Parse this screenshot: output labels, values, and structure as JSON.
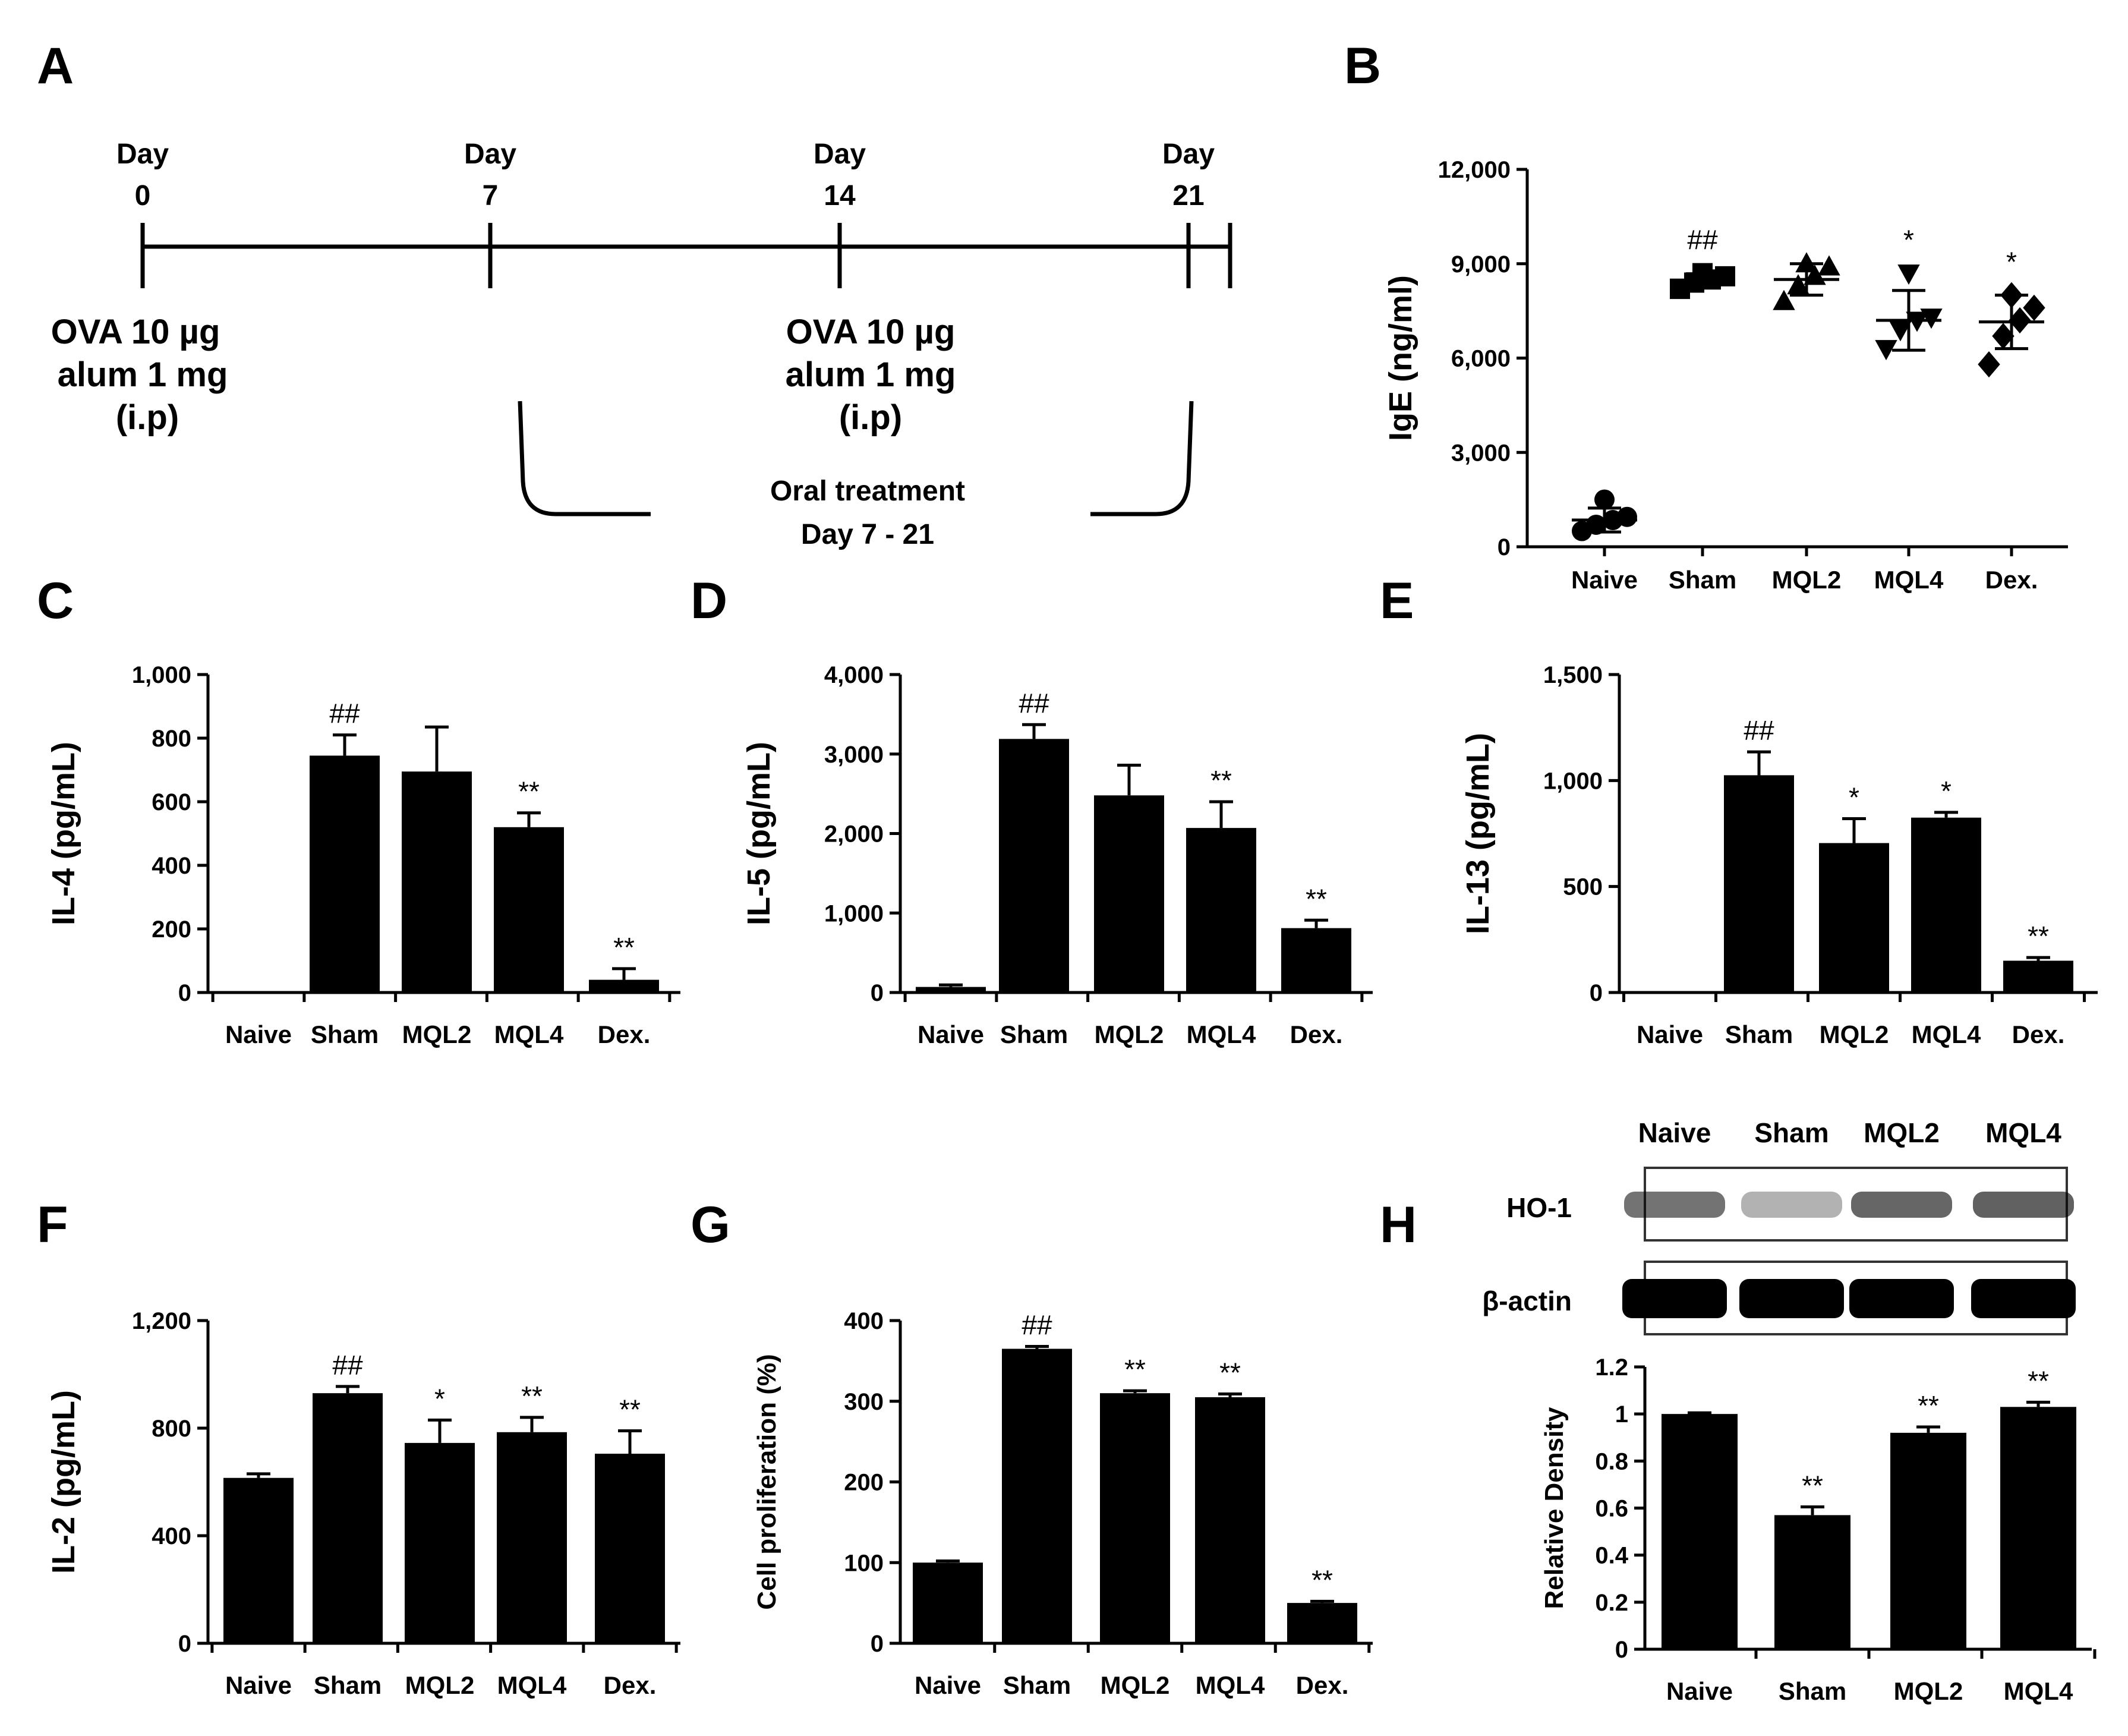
{
  "panel_labels": {
    "A": "A",
    "B": "B",
    "C": "C",
    "D": "D",
    "E": "E",
    "F": "F",
    "G": "G",
    "H": "H"
  },
  "timeline": {
    "days": [
      {
        "label": "Day",
        "num": "0"
      },
      {
        "label": "Day",
        "num": "7"
      },
      {
        "label": "Day",
        "num": "14"
      },
      {
        "label": "Day",
        "num": "21"
      }
    ],
    "injection1": [
      "OVA 10 µg",
      "alum 1 mg",
      "(i.p)"
    ],
    "injection2": [
      "OVA 10 µg",
      "alum 1 mg",
      "(i.p)"
    ],
    "treatment": [
      "Oral treatment",
      "Day 7 - 21"
    ]
  },
  "blot": {
    "lanes": [
      "Naive",
      "Sham",
      "MQL2",
      "MQL4"
    ],
    "rows": [
      "HO-1",
      "β-actin"
    ],
    "ho1_intensity": [
      0.55,
      0.3,
      0.6,
      0.62
    ],
    "actin_intensity": [
      1,
      1,
      1,
      1
    ]
  },
  "colors": {
    "bar": "#000000",
    "axis": "#000000",
    "background": "#ffffff"
  },
  "chart_data": [
    {
      "id": "B",
      "type": "scatter",
      "title": "",
      "xlabel": "",
      "ylabel": "IgE (ng/ml)",
      "categories": [
        "Naive",
        "Sham",
        "MQL2",
        "MQL4",
        "Dex."
      ],
      "ylim": [
        0,
        12000
      ],
      "yticks": [
        0,
        3000,
        6000,
        9000,
        12000
      ],
      "ytick_labels": [
        "0",
        "3,000",
        "6,000",
        "9,000",
        "12,000"
      ],
      "markers": [
        "circle",
        "square",
        "triangle-up",
        "triangle-down",
        "diamond"
      ],
      "points": [
        [
          500,
          700,
          850,
          950,
          1500
        ],
        [
          8200,
          8400,
          8500,
          8600,
          8700
        ],
        [
          7800,
          8300,
          8600,
          8900,
          9000
        ],
        [
          6300,
          6900,
          7200,
          7300,
          8700
        ],
        [
          5800,
          6700,
          7200,
          7600,
          8000
        ]
      ],
      "means": [
        850,
        8480,
        8500,
        7200,
        7150
      ],
      "sd": [
        380,
        200,
        500,
        950,
        850
      ],
      "annotations": [
        "",
        "##",
        "",
        "*",
        "*"
      ]
    },
    {
      "id": "C",
      "type": "bar",
      "title": "",
      "xlabel": "",
      "ylabel": "IL-4 (pg/mL)",
      "categories": [
        "Naive",
        "Sham",
        "MQL2",
        "MQL4",
        "Dex."
      ],
      "values": [
        0,
        745,
        695,
        520,
        40
      ],
      "errors": [
        0,
        65,
        140,
        45,
        35
      ],
      "ylim": [
        0,
        1000
      ],
      "yticks": [
        0,
        200,
        400,
        600,
        800,
        1000
      ],
      "ytick_labels": [
        "0",
        "200",
        "400",
        "600",
        "800",
        "1,000"
      ],
      "annotations": [
        "",
        "##",
        "",
        "**",
        "**"
      ]
    },
    {
      "id": "D",
      "type": "bar",
      "title": "",
      "xlabel": "",
      "ylabel": "IL-5 (pg/mL)",
      "categories": [
        "Naive",
        "Sham",
        "MQL2",
        "MQL4",
        "Dex."
      ],
      "values": [
        70,
        3190,
        2480,
        2070,
        810
      ],
      "errors": [
        25,
        180,
        380,
        330,
        100
      ],
      "ylim": [
        0,
        4000
      ],
      "yticks": [
        0,
        1000,
        2000,
        3000,
        4000
      ],
      "ytick_labels": [
        "0",
        "1,000",
        "2,000",
        "3,000",
        "4,000"
      ],
      "annotations": [
        "",
        "##",
        "",
        "**",
        "**"
      ]
    },
    {
      "id": "E",
      "type": "bar",
      "title": "",
      "xlabel": "",
      "ylabel": "IL-13 (pg/mL)",
      "categories": [
        "Naive",
        "Sham",
        "MQL2",
        "MQL4",
        "Dex."
      ],
      "values": [
        0,
        1025,
        705,
        825,
        150
      ],
      "errors": [
        0,
        110,
        115,
        25,
        15
      ],
      "ylim": [
        0,
        1500
      ],
      "yticks": [
        0,
        500,
        1000,
        1500
      ],
      "ytick_labels": [
        "0",
        "500",
        "1,000",
        "1,500"
      ],
      "annotations": [
        "",
        "##",
        "*",
        "*",
        "**"
      ]
    },
    {
      "id": "F",
      "type": "bar",
      "title": "",
      "xlabel": "",
      "ylabel": "IL-2 (pg/mL)",
      "categories": [
        "Naive",
        "Sham",
        "MQL2",
        "MQL4",
        "Dex."
      ],
      "values": [
        615,
        930,
        745,
        785,
        705
      ],
      "errors": [
        15,
        25,
        85,
        55,
        85
      ],
      "ylim": [
        0,
        1200
      ],
      "yticks": [
        0,
        400,
        800,
        1200
      ],
      "ytick_labels": [
        "0",
        "400",
        "800",
        "1,200"
      ],
      "annotations": [
        "",
        "##",
        "*",
        "**",
        "**"
      ]
    },
    {
      "id": "G",
      "type": "bar",
      "title": "",
      "xlabel": "",
      "ylabel": "Cell proliferation (%)",
      "categories": [
        "Naive",
        "Sham",
        "MQL2",
        "MQL4",
        "Dex."
      ],
      "values": [
        100,
        365,
        310,
        305,
        50
      ],
      "errors": [
        2,
        3,
        3,
        4,
        2
      ],
      "ylim": [
        0,
        400
      ],
      "yticks": [
        0,
        100,
        200,
        300,
        400
      ],
      "ytick_labels": [
        "0",
        "100",
        "200",
        "300",
        "400"
      ],
      "annotations": [
        "",
        "##",
        "**",
        "**",
        "**"
      ]
    },
    {
      "id": "H",
      "type": "bar",
      "title": "",
      "xlabel": "",
      "ylabel": "Relative Density",
      "categories": [
        "Naive",
        "Sham",
        "MQL2",
        "MQL4"
      ],
      "values": [
        1.0,
        0.57,
        0.92,
        1.03
      ],
      "errors": [
        0.005,
        0.035,
        0.025,
        0.02
      ],
      "ylim": [
        0,
        1.2
      ],
      "yticks": [
        0,
        0.2,
        0.4,
        0.6,
        0.8,
        1.0,
        1.2
      ],
      "ytick_labels": [
        "0",
        "0.2",
        "0.4",
        "0.6",
        "0.8",
        "1",
        "1.2"
      ],
      "annotations": [
        "",
        "**",
        "**",
        "**"
      ]
    }
  ]
}
